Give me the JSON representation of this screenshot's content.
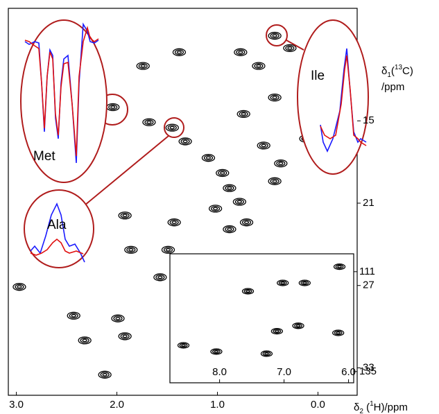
{
  "chart_data": [
    {
      "type": "scatter",
      "x": [
        0.43,
        1.38,
        0.77,
        0.28,
        0.59,
        2.04,
        1.45,
        1.32,
        1.09,
        0.95,
        0.88,
        0.78,
        1.02,
        0.71,
        0.88,
        1.92,
        1.43,
        1.86,
        1.49,
        2.97,
        1.57,
        2.43,
        1.99,
        2.32,
        2.12,
        1.92,
        0.43,
        1.74,
        0.12,
        1.68,
        0.74,
        0.54,
        0.43,
        0.37
      ],
      "values": [
        8.8,
        10.0,
        10.0,
        9.7,
        11.0,
        14.0,
        15.5,
        16.5,
        17.7,
        18.8,
        19.9,
        20.9,
        21.4,
        22.4,
        22.9,
        21.9,
        22.4,
        24.4,
        24.4,
        27.1,
        26.4,
        29.2,
        29.4,
        31.0,
        33.5,
        30.7,
        13.3,
        11.0,
        16.3,
        15.1,
        14.5,
        16.8,
        19.4,
        18.1
      ],
      "color": "#000000",
      "xlim": [
        3.08,
        -0.39
      ],
      "ylim": [
        6.8,
        35.0
      ],
      "xticks": [
        {
          "value": 3,
          "label": "3.0"
        },
        {
          "value": 2,
          "label": "2.0"
        },
        {
          "value": 1,
          "label": "1.0"
        },
        {
          "value": 0,
          "label": "0.0"
        }
      ],
      "yticks": [
        15,
        21,
        27,
        33
      ],
      "xlabel": [
        "δ",
        "2",
        " (",
        "1",
        "H)/ppm"
      ],
      "ylabel": [
        "δ",
        "1",
        "(",
        "13",
        "C)",
        "/ppm"
      ],
      "annotations": [
        "Met",
        "Ile",
        "Ala"
      ]
    },
    {
      "type": "scatter",
      "x": [
        7.02,
        6.68,
        7.56,
        6.78,
        7.11,
        6.16,
        8.56,
        8.05,
        7.27,
        6.14
      ],
      "values": [
        113.7,
        113.7,
        115.7,
        124.0,
        125.3,
        125.7,
        128.7,
        130.2,
        130.7,
        109.8
      ],
      "color": "#000000",
      "xlim": [
        8.77,
        5.92
      ],
      "ylim": [
        106.7,
        137.7
      ],
      "xticks": [
        {
          "value": 8,
          "label": "8.0"
        },
        {
          "value": 7,
          "label": "7.0"
        },
        {
          "value": 6,
          "label": "6.0"
        }
      ],
      "yticks": [
        111,
        135
      ]
    }
  ]
}
